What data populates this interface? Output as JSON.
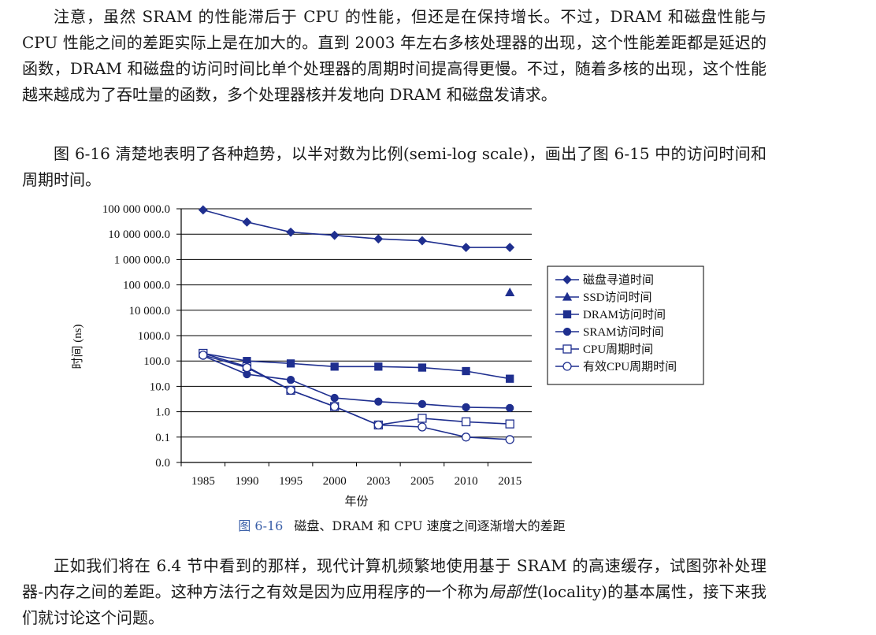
{
  "paragraphs": [
    "注意，虽然 SRAM 的性能滞后于 CPU 的性能，但还是在保持增长。不过，DRAM 和磁盘性能与 CPU 性能之间的差距实际上是在加大的。直到 2003 年左右多核处理器的出现，这个性能差距都是延迟的函数，DRAM 和磁盘的访问时间比单个处理器的周期时间提高得更慢。不过，随着多核的出现，这个性能越来越成为了吞吐量的函数，多个处理器核并发地向 DRAM 和磁盘发请求。",
    "图 6-16 清楚地表明了各种趋势，以半对数为比例(semi-log scale)，画出了图 6-15 中的访问时间和周期时间。",
    [
      "正如我们将在 6.4 节中看到的那样，现代计算机频繁地使用基于 SRAM 的高速缓存，试图弥补处理器-内存之间的差距。这种方法行之有效是因为应用程序的一个称为",
      "局部性",
      "(locality)的基本属性，接下来我们就讨论这个问题。"
    ]
  ],
  "caption": {
    "number": "图 6-16",
    "text": "磁盘、DRAM 和 CPU 速度之间逐渐增大的差距"
  },
  "chart_data": {
    "type": "line",
    "x_label": "年份",
    "y_label": "时间 (ns)",
    "categories": [
      "1985",
      "1990",
      "1995",
      "2000",
      "2003",
      "2005",
      "2010",
      "2015"
    ],
    "log_y": true,
    "grid": true,
    "legend": "right",
    "ylim": [
      0.01,
      100000000
    ],
    "yticks": [
      {
        "value": 0.01,
        "label": "0.0"
      },
      0.1,
      {
        "value": 1,
        "label": "1.0"
      },
      {
        "value": 10,
        "label": "10.0"
      },
      {
        "value": 100,
        "label": "100.0"
      },
      {
        "value": 1000,
        "label": "1000.0"
      },
      {
        "value": 10000,
        "label": "10 000.0"
      },
      {
        "value": 100000,
        "label": "100 000.0"
      },
      {
        "value": 1000000,
        "label": "1 000 000.0"
      },
      {
        "value": 10000000,
        "label": "10 000 000.0"
      },
      {
        "value": 100000000,
        "label": "100 000 000.0"
      }
    ],
    "series": [
      {
        "name": "磁盘寻道时间",
        "color": "#1f2f8f",
        "marker": "diamond",
        "values": [
          90000000,
          30000000,
          12000000,
          9000000,
          6500000,
          5500000,
          3000000,
          3000000
        ]
      },
      {
        "name": "SSD访问时间",
        "color": "#1f2f8f",
        "marker": "triangle",
        "values": [
          null,
          null,
          null,
          null,
          null,
          null,
          null,
          50000
        ]
      },
      {
        "name": "DRAM访问时间",
        "color": "#1f2f8f",
        "marker": "square",
        "values": [
          200,
          100,
          80,
          60,
          60,
          55,
          40,
          20
        ]
      },
      {
        "name": "SRAM访问时间",
        "color": "#1f2f8f",
        "marker": "circle",
        "values": [
          160,
          30,
          18,
          3.5,
          2.5,
          2,
          1.5,
          1.4
        ]
      },
      {
        "name": "CPU周期时间",
        "color": "#1f2f8f",
        "marker": "open-square",
        "values": [
          200,
          60,
          7,
          1.6,
          0.3,
          0.55,
          0.4,
          0.33
        ]
      },
      {
        "name": "有效CPU周期时间",
        "color": "#1f2f8f",
        "marker": "open-circle",
        "values": [
          170,
          55,
          7,
          1.6,
          0.3,
          0.25,
          0.1,
          0.08
        ]
      }
    ]
  }
}
